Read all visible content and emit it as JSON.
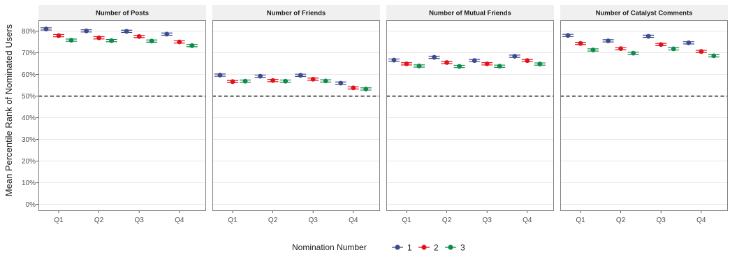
{
  "chart_data": {
    "type": "scatter",
    "ylabel": "Mean Percentile Rank of Nominated Users",
    "categories": [
      "Q1",
      "Q2",
      "Q3",
      "Q4"
    ],
    "yticks": [
      "0%",
      "10%",
      "20%",
      "30%",
      "40%",
      "50%",
      "60%",
      "70%",
      "80%"
    ],
    "ylim": [
      -3,
      85
    ],
    "reference_line": 50,
    "legend": {
      "title": "Nomination Number",
      "position": "bottom",
      "entries": [
        {
          "label": "1",
          "color": "#3d4b8f"
        },
        {
          "label": "2",
          "color": "#e3111b"
        },
        {
          "label": "3",
          "color": "#0f8a4a"
        }
      ]
    },
    "panels": [
      {
        "title": "Number of Posts",
        "series": [
          {
            "name": "1",
            "values": [
              81.0,
              80.1,
              79.9,
              78.6
            ]
          },
          {
            "name": "2",
            "values": [
              77.9,
              76.9,
              77.5,
              75.0
            ]
          },
          {
            "name": "3",
            "values": [
              75.8,
              75.6,
              75.4,
              73.3
            ]
          }
        ]
      },
      {
        "title": "Number of Friends",
        "series": [
          {
            "name": "1",
            "values": [
              59.7,
              59.2,
              59.6,
              56.0
            ]
          },
          {
            "name": "2",
            "values": [
              56.7,
              57.2,
              57.8,
              53.8
            ]
          },
          {
            "name": "3",
            "values": [
              56.9,
              56.9,
              57.0,
              53.3
            ]
          }
        ]
      },
      {
        "title": "Number of Mutual Friends",
        "series": [
          {
            "name": "1",
            "values": [
              66.6,
              67.9,
              66.4,
              68.4
            ]
          },
          {
            "name": "2",
            "values": [
              64.9,
              65.5,
              64.9,
              66.4
            ]
          },
          {
            "name": "3",
            "values": [
              63.9,
              63.7,
              63.8,
              64.8
            ]
          }
        ]
      },
      {
        "title": "Number of Catalyst Comments",
        "series": [
          {
            "name": "1",
            "values": [
              78.0,
              75.5,
              77.6,
              74.6
            ]
          },
          {
            "name": "2",
            "values": [
              74.3,
              71.9,
              73.8,
              70.6
            ]
          },
          {
            "name": "3",
            "values": [
              71.3,
              69.8,
              71.8,
              68.6
            ]
          }
        ]
      }
    ]
  }
}
